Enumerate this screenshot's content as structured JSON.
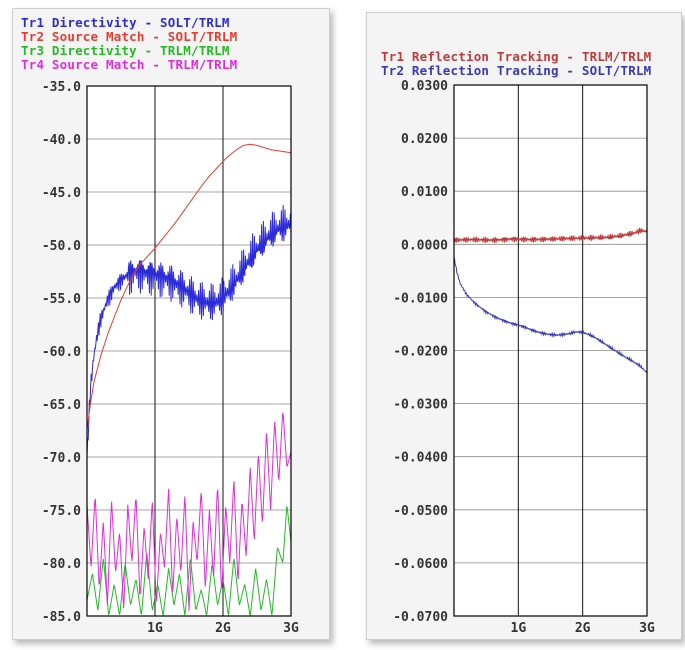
{
  "chart_data": [
    {
      "type": "line",
      "title": "",
      "xlabel": "",
      "ylabel": "",
      "xlim": [
        0,
        3
      ],
      "ylim": [
        -85,
        -35
      ],
      "y_ticks": [
        "-35.0",
        "-40.0",
        "-45.0",
        "-50.0",
        "-55.0",
        "-60.0",
        "-65.0",
        "-70.0",
        "-75.0",
        "-80.0",
        "-85.0"
      ],
      "x_ticks": [
        {
          "value": 1,
          "label": "1G"
        },
        {
          "value": 2,
          "label": "2G"
        },
        {
          "value": 3,
          "label": "3G"
        }
      ],
      "grid": true,
      "legend_position": "top-left",
      "series": [
        {
          "name": "Tr1 Directivity - SOLT/TRLM",
          "color": "#2b2bd8",
          "oscillation": 0.8,
          "points": [
            [
              0.0,
              -70.0
            ],
            [
              0.05,
              -63.5
            ],
            [
              0.1,
              -60.5
            ],
            [
              0.15,
              -58.5
            ],
            [
              0.2,
              -57.0
            ],
            [
              0.3,
              -55.2
            ],
            [
              0.4,
              -54.0
            ],
            [
              0.5,
              -53.3
            ],
            [
              0.6,
              -52.8
            ],
            [
              0.7,
              -52.5
            ],
            [
              0.8,
              -52.5
            ],
            [
              0.9,
              -52.7
            ],
            [
              1.0,
              -52.8
            ],
            [
              1.1,
              -53.0
            ],
            [
              1.2,
              -53.2
            ],
            [
              1.3,
              -53.6
            ],
            [
              1.4,
              -54.0
            ],
            [
              1.5,
              -54.5
            ],
            [
              1.6,
              -55.0
            ],
            [
              1.7,
              -55.3
            ],
            [
              1.8,
              -55.5
            ],
            [
              1.9,
              -55.4
            ],
            [
              2.0,
              -55.0
            ],
            [
              2.1,
              -54.2
            ],
            [
              2.2,
              -53.3
            ],
            [
              2.3,
              -52.3
            ],
            [
              2.4,
              -51.3
            ],
            [
              2.5,
              -50.4
            ],
            [
              2.6,
              -49.7
            ],
            [
              2.7,
              -49.0
            ],
            [
              2.8,
              -48.5
            ],
            [
              2.9,
              -48.2
            ],
            [
              3.0,
              -48.0
            ]
          ]
        },
        {
          "name": "Tr2 Source Match - SOLT/TRLM",
          "color": "#e83b2e",
          "oscillation": 0,
          "points": [
            [
              0.0,
              -67.5
            ],
            [
              0.05,
              -65.0
            ],
            [
              0.1,
              -63.0
            ],
            [
              0.2,
              -60.5
            ],
            [
              0.3,
              -58.5
            ],
            [
              0.4,
              -56.8
            ],
            [
              0.5,
              -55.2
            ],
            [
              0.6,
              -53.8
            ],
            [
              0.7,
              -52.6
            ],
            [
              0.8,
              -51.7
            ],
            [
              0.9,
              -51.0
            ],
            [
              1.0,
              -50.3
            ],
            [
              1.1,
              -49.5
            ],
            [
              1.2,
              -48.7
            ],
            [
              1.3,
              -47.9
            ],
            [
              1.4,
              -47.0
            ],
            [
              1.5,
              -46.1
            ],
            [
              1.6,
              -45.2
            ],
            [
              1.7,
              -44.3
            ],
            [
              1.8,
              -43.5
            ],
            [
              1.9,
              -42.8
            ],
            [
              2.0,
              -42.1
            ],
            [
              2.1,
              -41.5
            ],
            [
              2.2,
              -41.0
            ],
            [
              2.3,
              -40.6
            ],
            [
              2.4,
              -40.5
            ],
            [
              2.5,
              -40.6
            ],
            [
              2.6,
              -40.8
            ],
            [
              2.7,
              -41.0
            ],
            [
              2.8,
              -41.1
            ],
            [
              2.9,
              -41.2
            ],
            [
              3.0,
              -41.3
            ]
          ]
        },
        {
          "name": "Tr3 Directivity - TRLM/TRLM",
          "color": "#22bb22",
          "oscillation": 0,
          "points": [
            [
              0.0,
              -83.5
            ],
            [
              0.08,
              -81.0
            ],
            [
              0.16,
              -84.5
            ],
            [
              0.24,
              -79.5
            ],
            [
              0.32,
              -85.0
            ],
            [
              0.4,
              -82.0
            ],
            [
              0.48,
              -85.0
            ],
            [
              0.56,
              -80.0
            ],
            [
              0.64,
              -84.0
            ],
            [
              0.72,
              -81.5
            ],
            [
              0.8,
              -85.0
            ],
            [
              0.88,
              -79.0
            ],
            [
              0.96,
              -84.5
            ],
            [
              1.04,
              -82.0
            ],
            [
              1.12,
              -85.0
            ],
            [
              1.2,
              -80.5
            ],
            [
              1.28,
              -84.0
            ],
            [
              1.36,
              -81.0
            ],
            [
              1.44,
              -85.0
            ],
            [
              1.52,
              -79.5
            ],
            [
              1.6,
              -84.5
            ],
            [
              1.68,
              -82.5
            ],
            [
              1.76,
              -85.0
            ],
            [
              1.84,
              -80.0
            ],
            [
              1.92,
              -84.0
            ],
            [
              2.0,
              -81.5
            ],
            [
              2.08,
              -85.0
            ],
            [
              2.16,
              -79.5
            ],
            [
              2.24,
              -84.0
            ],
            [
              2.32,
              -82.0
            ],
            [
              2.4,
              -85.0
            ],
            [
              2.48,
              -80.5
            ],
            [
              2.56,
              -84.5
            ],
            [
              2.64,
              -81.5
            ],
            [
              2.72,
              -85.0
            ],
            [
              2.8,
              -78.5
            ],
            [
              2.88,
              -80.0
            ],
            [
              2.94,
              -74.5
            ],
            [
              3.0,
              -78.0
            ]
          ]
        },
        {
          "name": "Tr4 Source Match - TRLM/TRLM",
          "color": "#e02ce0",
          "oscillation": 0,
          "points": [
            [
              0.0,
              -74.5
            ],
            [
              0.06,
              -80.5
            ],
            [
              0.12,
              -73.5
            ],
            [
              0.18,
              -82.5
            ],
            [
              0.24,
              -76.0
            ],
            [
              0.3,
              -84.0
            ],
            [
              0.36,
              -74.0
            ],
            [
              0.42,
              -81.0
            ],
            [
              0.48,
              -77.0
            ],
            [
              0.54,
              -84.5
            ],
            [
              0.6,
              -74.5
            ],
            [
              0.66,
              -80.0
            ],
            [
              0.72,
              -73.5
            ],
            [
              0.78,
              -83.5
            ],
            [
              0.84,
              -76.5
            ],
            [
              0.9,
              -81.5
            ],
            [
              0.96,
              -74.0
            ],
            [
              1.02,
              -84.0
            ],
            [
              1.08,
              -77.0
            ],
            [
              1.14,
              -80.5
            ],
            [
              1.2,
              -73.0
            ],
            [
              1.26,
              -83.0
            ],
            [
              1.32,
              -75.5
            ],
            [
              1.38,
              -81.0
            ],
            [
              1.44,
              -73.5
            ],
            [
              1.5,
              -84.5
            ],
            [
              1.56,
              -76.0
            ],
            [
              1.62,
              -80.0
            ],
            [
              1.68,
              -73.0
            ],
            [
              1.74,
              -82.5
            ],
            [
              1.8,
              -75.0
            ],
            [
              1.86,
              -81.5
            ],
            [
              1.92,
              -72.5
            ],
            [
              1.98,
              -83.0
            ],
            [
              2.04,
              -74.5
            ],
            [
              2.1,
              -80.0
            ],
            [
              2.16,
              -72.0
            ],
            [
              2.22,
              -82.0
            ],
            [
              2.28,
              -74.0
            ],
            [
              2.34,
              -79.5
            ],
            [
              2.4,
              -71.0
            ],
            [
              2.46,
              -78.0
            ],
            [
              2.52,
              -69.5
            ],
            [
              2.58,
              -76.5
            ],
            [
              2.64,
              -67.5
            ],
            [
              2.7,
              -75.0
            ],
            [
              2.76,
              -66.5
            ],
            [
              2.82,
              -72.5
            ],
            [
              2.88,
              -65.5
            ],
            [
              2.94,
              -71.0
            ],
            [
              3.0,
              -69.5
            ]
          ]
        }
      ]
    },
    {
      "type": "line",
      "title": "",
      "xlabel": "",
      "ylabel": "",
      "xlim": [
        0,
        3
      ],
      "ylim": [
        -0.07,
        0.03
      ],
      "y_ticks": [
        "0.0300",
        "0.0200",
        "0.0100",
        "0.0000",
        "-0.0100",
        "-0.0200",
        "-0.0300",
        "-0.0400",
        "-0.0500",
        "-0.0600",
        "-0.0700"
      ],
      "x_ticks": [
        {
          "value": 1,
          "label": "1G"
        },
        {
          "value": 2,
          "label": "2G"
        },
        {
          "value": 3,
          "label": "3G"
        }
      ],
      "grid": true,
      "legend_position": "top",
      "series": [
        {
          "name": "Tr1 Reflection Tracking - TRLM/TRLM",
          "color": "#c03a3a",
          "oscillation": 0.0006,
          "points": [
            [
              0.0,
              0.0008
            ],
            [
              0.3,
              0.0009
            ],
            [
              0.6,
              0.0008
            ],
            [
              0.9,
              0.001
            ],
            [
              1.2,
              0.0009
            ],
            [
              1.5,
              0.001
            ],
            [
              1.8,
              0.0011
            ],
            [
              2.1,
              0.0012
            ],
            [
              2.4,
              0.0013
            ],
            [
              2.6,
              0.0016
            ],
            [
              2.8,
              0.0021
            ],
            [
              2.9,
              0.0026
            ],
            [
              3.0,
              0.0024
            ]
          ]
        },
        {
          "name": "Tr2 Reflection Tracking - SOLT/TRLM",
          "color": "#3838b8",
          "oscillation": 0.0003,
          "points": [
            [
              0.0,
              -0.0025
            ],
            [
              0.05,
              -0.0055
            ],
            [
              0.1,
              -0.0075
            ],
            [
              0.2,
              -0.0095
            ],
            [
              0.3,
              -0.0108
            ],
            [
              0.4,
              -0.0118
            ],
            [
              0.5,
              -0.0127
            ],
            [
              0.6,
              -0.0134
            ],
            [
              0.7,
              -0.014
            ],
            [
              0.8,
              -0.0145
            ],
            [
              0.9,
              -0.0149
            ],
            [
              1.0,
              -0.0152
            ],
            [
              1.1,
              -0.0156
            ],
            [
              1.2,
              -0.0161
            ],
            [
              1.3,
              -0.0165
            ],
            [
              1.4,
              -0.0168
            ],
            [
              1.5,
              -0.017
            ],
            [
              1.6,
              -0.0171
            ],
            [
              1.7,
              -0.017
            ],
            [
              1.8,
              -0.0168
            ],
            [
              1.9,
              -0.0165
            ],
            [
              2.0,
              -0.0166
            ],
            [
              2.1,
              -0.017
            ],
            [
              2.2,
              -0.0176
            ],
            [
              2.3,
              -0.0184
            ],
            [
              2.4,
              -0.0192
            ],
            [
              2.5,
              -0.02
            ],
            [
              2.6,
              -0.0208
            ],
            [
              2.7,
              -0.0215
            ],
            [
              2.8,
              -0.0222
            ],
            [
              2.9,
              -0.023
            ],
            [
              3.0,
              -0.0242
            ]
          ]
        }
      ]
    }
  ]
}
